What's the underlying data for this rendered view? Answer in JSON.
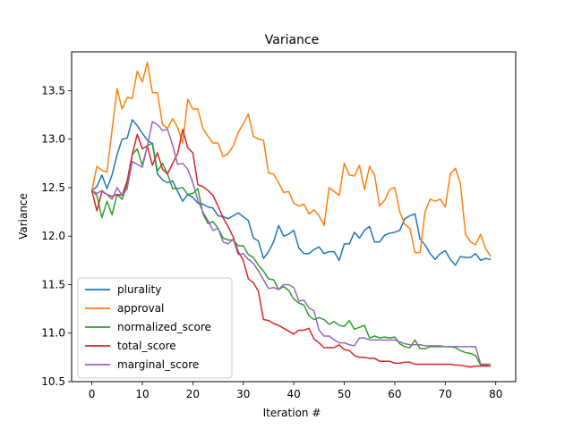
{
  "chart_data": {
    "type": "line",
    "title": "Variance",
    "xlabel": "Iteration #",
    "ylabel": "Variance",
    "xlim": [
      -4,
      83.95
    ],
    "ylim": [
      10.5,
      13.9
    ],
    "xticks": [
      0,
      10,
      20,
      30,
      40,
      50,
      60,
      70,
      80
    ],
    "yticks": [
      10.5,
      11.0,
      11.5,
      12.0,
      12.5,
      13.0,
      13.5
    ],
    "ytick_labels": [
      "10.5",
      "11.0",
      "11.5",
      "12.0",
      "12.5",
      "13.0",
      "13.5"
    ],
    "grid": false,
    "legend_position": "lower-left",
    "series": [
      {
        "name": "plurality",
        "color": "#1f77b4",
        "values": [
          12.47,
          12.51,
          12.63,
          12.49,
          12.63,
          12.84,
          13.0,
          13.01,
          13.2,
          13.14,
          13.06,
          12.99,
          12.95,
          12.64,
          12.58,
          12.55,
          12.57,
          12.46,
          12.36,
          12.43,
          12.4,
          12.34,
          12.33,
          12.3,
          12.29,
          12.21,
          12.2,
          12.18,
          12.21,
          12.24,
          12.2,
          12.16,
          11.98,
          11.95,
          11.77,
          11.84,
          11.94,
          12.11,
          12.0,
          12.02,
          12.06,
          11.88,
          11.82,
          11.82,
          11.86,
          11.89,
          11.82,
          11.84,
          11.84,
          11.75,
          11.92,
          11.92,
          12.04,
          11.98,
          12.06,
          12.1,
          11.94,
          11.94,
          12.01,
          12.03,
          12.04,
          12.06,
          12.18,
          12.21,
          12.23,
          11.97,
          11.91,
          11.82,
          11.76,
          11.82,
          11.85,
          11.76,
          11.7,
          11.79,
          11.78,
          11.78,
          11.82,
          11.75,
          11.77,
          11.76
        ]
      },
      {
        "name": "approval",
        "color": "#ff7f0e",
        "values": [
          12.47,
          12.72,
          12.68,
          12.66,
          13.09,
          13.52,
          13.31,
          13.43,
          13.42,
          13.7,
          13.59,
          13.79,
          13.48,
          13.48,
          13.15,
          13.11,
          13.21,
          13.12,
          12.96,
          13.41,
          13.31,
          13.31,
          13.11,
          13.03,
          12.96,
          12.96,
          12.82,
          12.85,
          12.93,
          13.07,
          13.16,
          13.26,
          13.03,
          13.0,
          12.99,
          12.65,
          12.64,
          12.55,
          12.45,
          12.46,
          12.34,
          12.31,
          12.33,
          12.23,
          12.27,
          12.21,
          12.11,
          12.5,
          12.46,
          12.42,
          12.75,
          12.63,
          12.62,
          12.73,
          12.48,
          12.72,
          12.63,
          12.31,
          12.37,
          12.48,
          12.5,
          12.25,
          12.12,
          12.08,
          11.83,
          11.83,
          12.25,
          12.38,
          12.36,
          12.38,
          12.3,
          12.64,
          12.7,
          12.54,
          12.02,
          11.94,
          11.91,
          12.02,
          11.87,
          11.79
        ]
      },
      {
        "name": "normalized_score",
        "color": "#2ca02c",
        "values": [
          12.47,
          12.42,
          12.19,
          12.36,
          12.22,
          12.43,
          12.38,
          12.53,
          12.84,
          12.9,
          12.73,
          12.93,
          12.96,
          12.67,
          12.75,
          12.64,
          12.49,
          12.49,
          12.5,
          12.43,
          12.44,
          12.49,
          12.23,
          12.13,
          12.15,
          12.08,
          11.98,
          11.96,
          11.96,
          11.9,
          11.9,
          11.81,
          11.78,
          11.7,
          11.64,
          11.56,
          11.55,
          11.45,
          11.48,
          11.44,
          11.35,
          11.31,
          11.29,
          11.18,
          11.14,
          11.16,
          11.14,
          11.09,
          11.12,
          11.08,
          11.07,
          11.13,
          11.04,
          11.06,
          11.08,
          10.95,
          10.97,
          10.95,
          10.96,
          10.95,
          10.96,
          10.89,
          10.86,
          10.85,
          10.93,
          10.84,
          10.84,
          10.86,
          10.86,
          10.86,
          10.86,
          10.86,
          10.85,
          10.82,
          10.8,
          10.79,
          10.77,
          10.67,
          10.67,
          10.66
        ]
      },
      {
        "name": "total_score",
        "color": "#d62728",
        "values": [
          12.47,
          12.26,
          12.46,
          12.43,
          12.41,
          12.43,
          12.42,
          12.57,
          12.84,
          13.05,
          12.9,
          12.93,
          12.73,
          12.86,
          12.69,
          12.64,
          12.75,
          12.85,
          13.1,
          12.91,
          12.86,
          12.53,
          12.51,
          12.47,
          12.42,
          12.31,
          12.19,
          12.1,
          11.99,
          11.84,
          11.75,
          11.56,
          11.52,
          11.43,
          11.14,
          11.13,
          11.1,
          11.08,
          11.05,
          11.02,
          10.99,
          11.03,
          11.03,
          11.05,
          10.94,
          10.9,
          10.85,
          10.85,
          10.85,
          10.88,
          10.83,
          10.82,
          10.77,
          10.75,
          10.75,
          10.74,
          10.74,
          10.71,
          10.71,
          10.71,
          10.69,
          10.69,
          10.7,
          10.7,
          10.68,
          10.68,
          10.68,
          10.68,
          10.68,
          10.68,
          10.68,
          10.68,
          10.67,
          10.67,
          10.66,
          10.65,
          10.66,
          10.66,
          10.66,
          10.66
        ]
      },
      {
        "name": "marginal_score",
        "color": "#9467bd",
        "values": [
          12.47,
          12.44,
          12.47,
          12.43,
          12.38,
          12.5,
          12.42,
          12.49,
          12.77,
          12.74,
          12.71,
          12.93,
          13.18,
          13.15,
          13.09,
          13.1,
          12.94,
          12.74,
          12.75,
          12.69,
          12.55,
          12.37,
          12.25,
          12.16,
          12.06,
          12.08,
          11.94,
          11.92,
          11.97,
          11.81,
          11.82,
          11.76,
          11.72,
          11.64,
          11.55,
          11.46,
          11.47,
          11.45,
          11.5,
          11.5,
          11.47,
          11.33,
          11.34,
          11.26,
          11.23,
          11.03,
          10.97,
          10.97,
          10.93,
          10.9,
          10.9,
          10.88,
          10.87,
          10.95,
          10.95,
          10.93,
          10.93,
          10.93,
          10.93,
          10.93,
          10.93,
          10.91,
          10.89,
          10.88,
          10.88,
          10.88,
          10.87,
          10.87,
          10.87,
          10.87,
          10.86,
          10.86,
          10.86,
          10.86,
          10.86,
          10.86,
          10.86,
          10.68,
          10.68,
          10.68
        ]
      }
    ]
  }
}
